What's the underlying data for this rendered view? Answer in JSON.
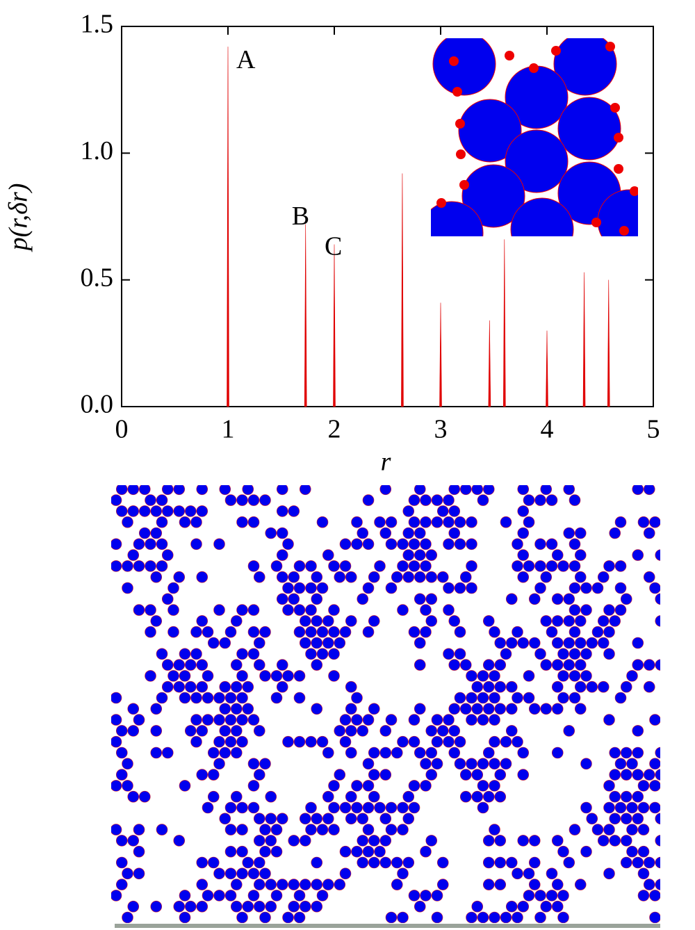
{
  "chart_data": {
    "type": "stem",
    "x_label": "r",
    "y_label": "p(r,δr)",
    "x": [
      1.0,
      1.73,
      2.0,
      2.64,
      3.0,
      3.46,
      3.6,
      4.0,
      4.35,
      4.58
    ],
    "values": [
      1.42,
      0.72,
      0.64,
      0.92,
      0.41,
      0.34,
      0.66,
      0.3,
      0.53,
      0.5
    ],
    "color": "#e00000",
    "annotations": [
      "A",
      "B",
      "C"
    ],
    "xlim": [
      0,
      5
    ],
    "xticks": [
      0,
      1,
      2,
      3,
      4,
      5
    ],
    "ylim": [
      0,
      1.5
    ],
    "yticks": [
      {
        "value": 0,
        "label": "0.0"
      },
      0.5,
      {
        "value": 1,
        "label": "1.0"
      },
      1.5
    ]
  }
}
